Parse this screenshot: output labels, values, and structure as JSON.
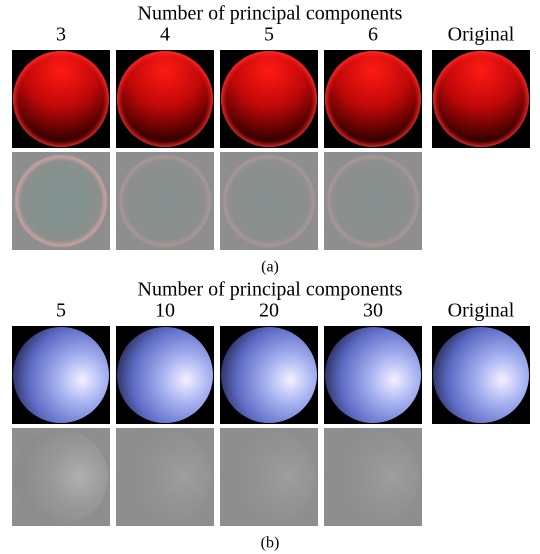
{
  "panels": [
    {
      "title": "Number of principal components",
      "columns": [
        "3",
        "4",
        "5",
        "6",
        "Original"
      ],
      "caption": "(a)"
    },
    {
      "title": "Number of principal components",
      "columns": [
        "5",
        "10",
        "20",
        "30",
        "Original"
      ],
      "caption": "(b)"
    }
  ]
}
